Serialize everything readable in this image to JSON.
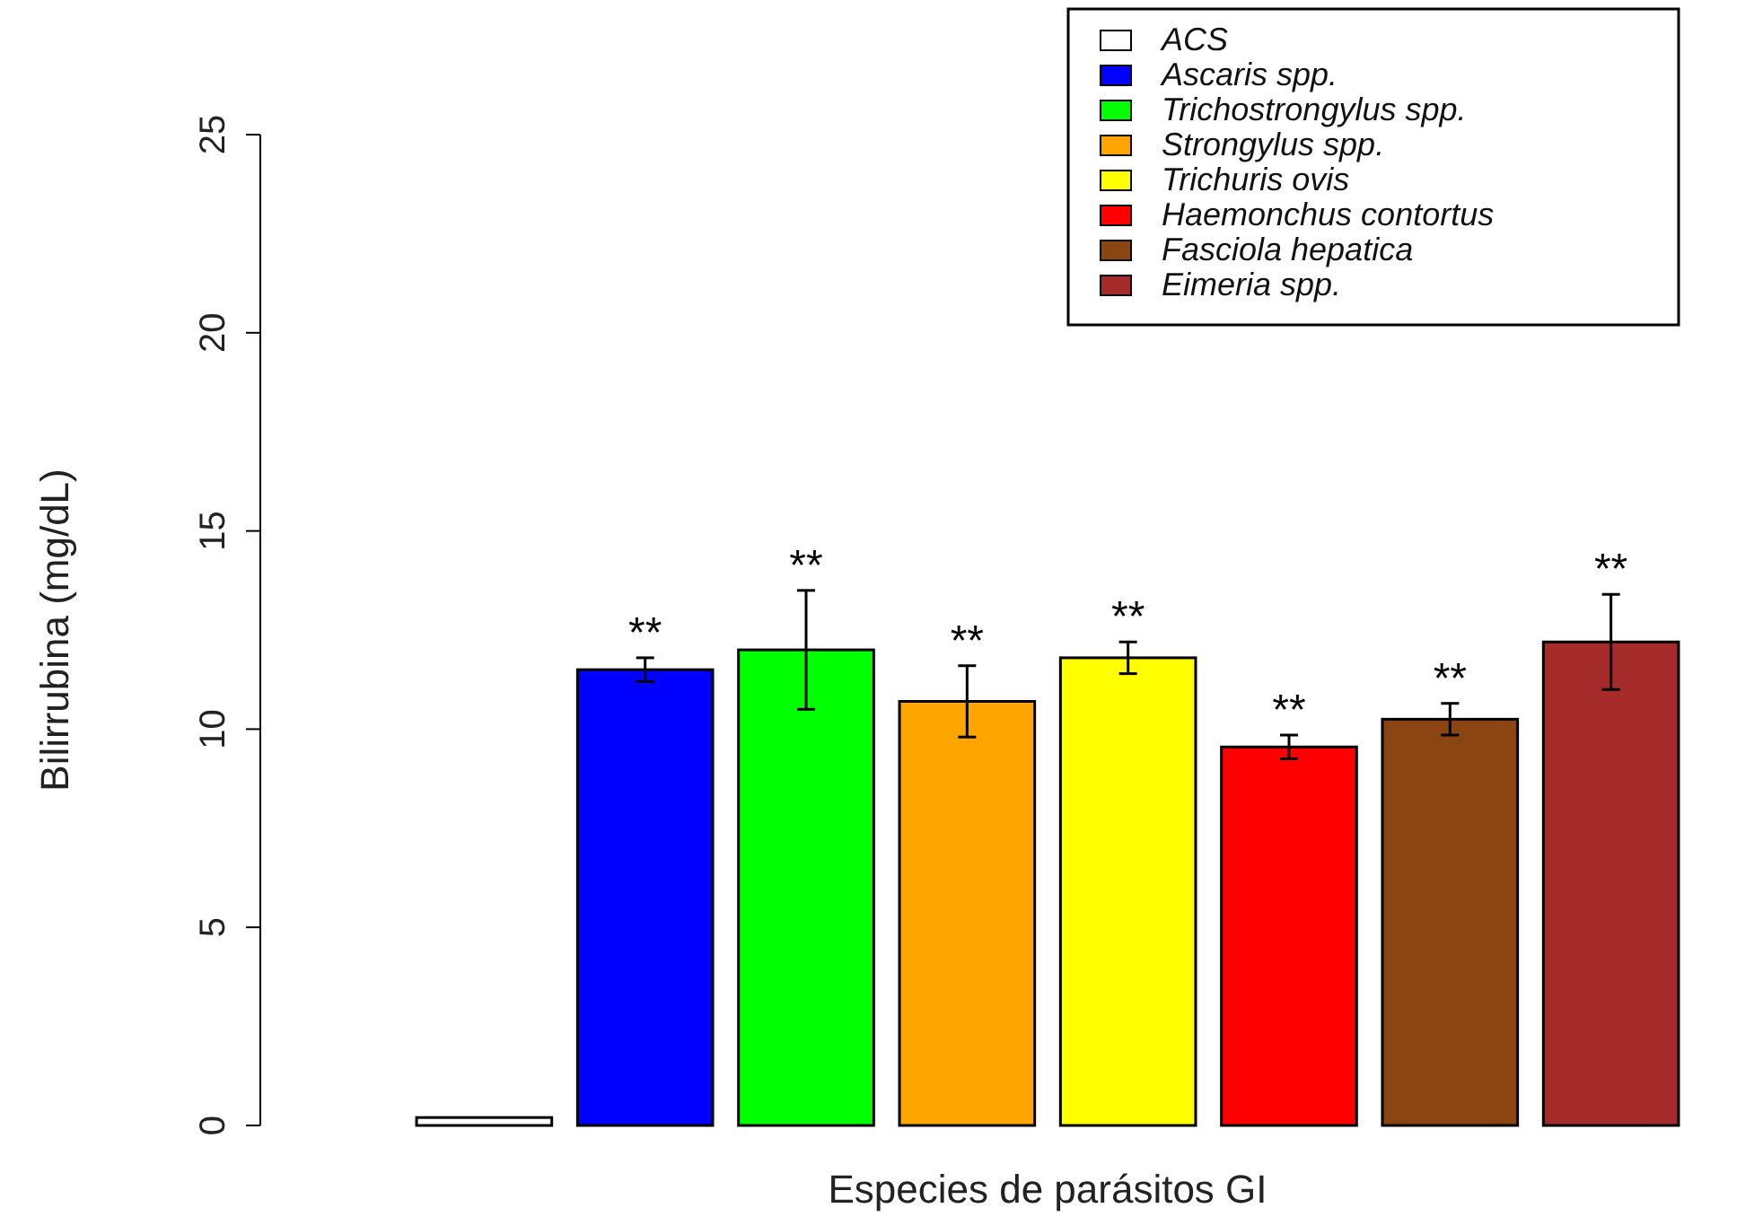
{
  "chart_data": {
    "type": "bar",
    "xlabel": "Especies de parásitos GI",
    "ylabel": "Bilirrubina (mg/dL)",
    "categories": [
      null
    ],
    "series": [
      {
        "name": "ACS",
        "color": "#ffffff",
        "values": [
          0.2
        ]
      },
      {
        "name": "Ascaris spp.",
        "color": "#0000ff",
        "values": [
          11.5
        ],
        "errors": [
          0.3
        ]
      },
      {
        "name": "Trichostrongylus spp.",
        "color": "#00ff00",
        "values": [
          12.0
        ],
        "errors": [
          1.5
        ]
      },
      {
        "name": "Strongylus spp.",
        "color": "#ffa500",
        "values": [
          10.7
        ],
        "errors": [
          0.9
        ]
      },
      {
        "name": "Trichuris ovis",
        "color": "#ffff00",
        "values": [
          11.8
        ],
        "errors": [
          0.4
        ]
      },
      {
        "name": "Haemonchus contortus",
        "color": "#ff0000",
        "values": [
          9.55
        ],
        "errors": [
          0.3
        ]
      },
      {
        "name": "Fasciola hepatica",
        "color": "#8b4513",
        "values": [
          10.25
        ],
        "errors": [
          0.4
        ]
      },
      {
        "name": "Eimeria spp.",
        "color": "#a52a2a",
        "values": [
          12.2
        ],
        "errors": [
          1.2
        ]
      }
    ],
    "annotations": [
      "**",
      "**",
      "**",
      "**",
      "**",
      "**",
      "**"
    ],
    "ylim": [
      0,
      25
    ],
    "yticks": [
      0,
      5,
      10,
      15,
      20,
      25
    ],
    "grid": false,
    "legend": "top right",
    "tick_labels": "y"
  }
}
